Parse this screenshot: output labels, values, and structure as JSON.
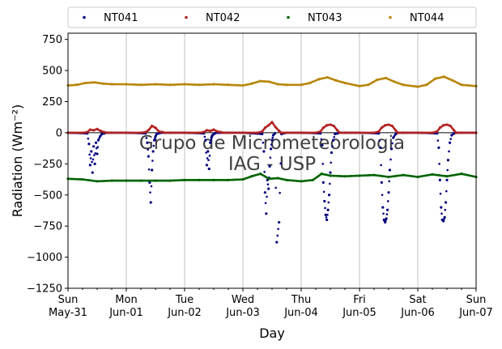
{
  "chart_data": {
    "type": "scatter",
    "title": "",
    "xlabel": "Day",
    "ylabel": "Radiation (Wm⁻²)",
    "ylim": [
      -1250,
      800
    ],
    "xlim_days": [
      0,
      7
    ],
    "yticks": [
      750,
      500,
      250,
      0,
      -250,
      -500,
      -750,
      -1000,
      -1250
    ],
    "xticks": [
      {
        "day": 0,
        "line1": "Sun",
        "line2": "May-31"
      },
      {
        "day": 1,
        "line1": "Mon",
        "line2": "Jun-01"
      },
      {
        "day": 2,
        "line1": "Tue",
        "line2": "Jun-02"
      },
      {
        "day": 3,
        "line1": "Wed",
        "line2": "Jun-03"
      },
      {
        "day": 4,
        "line1": "Thu",
        "line2": "Jun-04"
      },
      {
        "day": 5,
        "line1": "Fri",
        "line2": "Jun-05"
      },
      {
        "day": 6,
        "line1": "Sat",
        "line2": "Jun-06"
      },
      {
        "day": 7,
        "line1": "Sun",
        "line2": "Jun-07"
      }
    ],
    "grid": "vertical",
    "legend_position": "top",
    "watermark": [
      "Grupo de Micrometeorologia",
      "IAG - USP"
    ],
    "series": [
      {
        "name": "NT041",
        "color": "#000080",
        "x": [
          0.0,
          0.33,
          0.36,
          0.38,
          0.4,
          0.42,
          0.44,
          0.46,
          0.48,
          0.5,
          0.52,
          0.55,
          0.58,
          0.62,
          0.66,
          0.75,
          1.0,
          1.33,
          1.36,
          1.38,
          1.4,
          1.42,
          1.44,
          1.46,
          1.48,
          1.5,
          1.52,
          1.55,
          1.6,
          1.66,
          1.75,
          2.0,
          2.33,
          2.36,
          2.38,
          2.4,
          2.42,
          2.44,
          2.46,
          2.48,
          2.5,
          2.52,
          2.55,
          2.6,
          2.66,
          2.75,
          3.0,
          3.33,
          3.36,
          3.38,
          3.4,
          3.42,
          3.44,
          3.46,
          3.48,
          3.5,
          3.52,
          3.55,
          3.58,
          3.62,
          3.66,
          3.75,
          4.0,
          4.33,
          4.36,
          4.38,
          4.4,
          4.42,
          4.44,
          4.46,
          4.48,
          4.5,
          4.52,
          4.55,
          4.58,
          4.62,
          4.66,
          4.75,
          5.0,
          5.33,
          5.36,
          5.38,
          5.4,
          5.42,
          5.44,
          5.46,
          5.48,
          5.5,
          5.52,
          5.55,
          5.58,
          5.62,
          5.66,
          5.75,
          6.0,
          6.33,
          6.36,
          6.38,
          6.4,
          6.42,
          6.44,
          6.46,
          6.48,
          6.5,
          6.52,
          6.55,
          6.58,
          6.62,
          6.66,
          6.75,
          7.0
        ],
        "y": [
          0,
          -5,
          -90,
          -260,
          -150,
          -320,
          -110,
          -250,
          -80,
          -170,
          -60,
          -30,
          -10,
          -5,
          0,
          0,
          0,
          -5,
          -80,
          -190,
          -400,
          -560,
          -300,
          -150,
          -60,
          -30,
          -10,
          -5,
          0,
          0,
          0,
          0,
          -5,
          -60,
          -260,
          -150,
          -290,
          -80,
          -40,
          -20,
          -10,
          -5,
          0,
          0,
          0,
          0,
          0,
          -10,
          -150,
          -480,
          -650,
          -380,
          -450,
          -270,
          -130,
          -60,
          -20,
          -5,
          -880,
          -720,
          -10,
          0,
          0,
          -5,
          -100,
          -400,
          -550,
          -660,
          -700,
          -620,
          -500,
          -320,
          -160,
          -60,
          -10,
          -5,
          0,
          0,
          0,
          -5,
          -120,
          -400,
          -600,
          -700,
          -720,
          -690,
          -620,
          -480,
          -300,
          -130,
          -40,
          -10,
          0,
          0,
          0,
          -5,
          -120,
          -380,
          -600,
          -700,
          -710,
          -680,
          -560,
          -380,
          -220,
          -80,
          -20,
          -5,
          0,
          0,
          0
        ]
      },
      {
        "name": "NT042",
        "color": "#b22222",
        "x": [
          0.0,
          0.25,
          0.33,
          0.38,
          0.44,
          0.5,
          0.56,
          0.62,
          0.66,
          0.75,
          1.0,
          1.25,
          1.33,
          1.38,
          1.44,
          1.5,
          1.56,
          1.62,
          1.66,
          1.75,
          2.0,
          2.25,
          2.33,
          2.38,
          2.44,
          2.5,
          2.56,
          2.62,
          2.66,
          2.75,
          3.0,
          3.25,
          3.33,
          3.38,
          3.44,
          3.5,
          3.56,
          3.62,
          3.66,
          3.75,
          4.0,
          4.25,
          4.33,
          4.38,
          4.44,
          4.5,
          4.56,
          4.62,
          4.66,
          4.75,
          5.0,
          5.25,
          5.33,
          5.38,
          5.44,
          5.5,
          5.56,
          5.62,
          5.66,
          5.75,
          6.0,
          6.25,
          6.33,
          6.38,
          6.44,
          6.5,
          6.56,
          6.62,
          6.66,
          6.75,
          7.0
        ],
        "y": [
          0,
          0,
          5,
          25,
          20,
          30,
          15,
          5,
          0,
          0,
          0,
          0,
          5,
          20,
          55,
          40,
          10,
          5,
          0,
          0,
          0,
          0,
          5,
          20,
          15,
          25,
          10,
          5,
          0,
          0,
          0,
          0,
          10,
          40,
          60,
          85,
          45,
          15,
          0,
          0,
          0,
          0,
          10,
          40,
          60,
          65,
          55,
          20,
          0,
          0,
          0,
          0,
          10,
          40,
          60,
          65,
          55,
          20,
          0,
          0,
          0,
          0,
          10,
          40,
          60,
          65,
          55,
          20,
          0,
          0,
          0
        ]
      },
      {
        "name": "NT043",
        "color": "#006400",
        "x": [
          0.0,
          0.25,
          0.5,
          0.75,
          1.0,
          1.25,
          1.5,
          1.75,
          2.0,
          2.25,
          2.5,
          2.75,
          3.0,
          3.15,
          3.3,
          3.45,
          3.6,
          3.75,
          4.0,
          4.2,
          4.35,
          4.5,
          4.75,
          5.0,
          5.25,
          5.5,
          5.75,
          6.0,
          6.25,
          6.5,
          6.75,
          7.0
        ],
        "y": [
          -370,
          -375,
          -390,
          -385,
          -385,
          -385,
          -385,
          -385,
          -380,
          -380,
          -380,
          -380,
          -375,
          -350,
          -330,
          -370,
          -365,
          -380,
          -390,
          -380,
          -330,
          -345,
          -350,
          -345,
          -340,
          -355,
          -340,
          -355,
          -335,
          -350,
          -330,
          -355
        ]
      },
      {
        "name": "NT044",
        "color": "#b8860b",
        "x": [
          0.0,
          0.15,
          0.3,
          0.45,
          0.6,
          0.75,
          1.0,
          1.25,
          1.5,
          1.75,
          2.0,
          2.25,
          2.5,
          2.75,
          3.0,
          3.15,
          3.3,
          3.45,
          3.6,
          3.75,
          4.0,
          4.15,
          4.3,
          4.45,
          4.6,
          4.75,
          5.0,
          5.15,
          5.3,
          5.45,
          5.6,
          5.75,
          6.0,
          6.15,
          6.3,
          6.45,
          6.6,
          6.75,
          7.0
        ],
        "y": [
          380,
          385,
          400,
          405,
          395,
          390,
          390,
          385,
          390,
          385,
          390,
          385,
          390,
          385,
          380,
          395,
          415,
          410,
          390,
          385,
          385,
          400,
          430,
          445,
          420,
          400,
          375,
          385,
          425,
          440,
          410,
          385,
          370,
          385,
          435,
          450,
          420,
          385,
          375
        ]
      }
    ]
  }
}
